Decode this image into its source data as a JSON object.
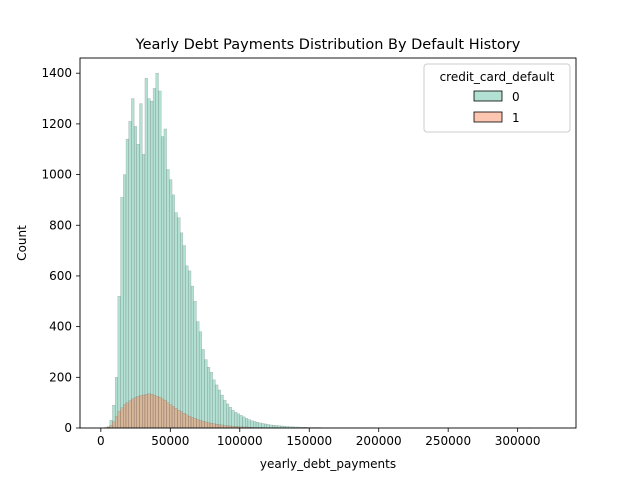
{
  "chart_data": {
    "type": "histogram",
    "title": "Yearly Debt Payments Distribution By Default History",
    "xlabel": "yearly_debt_payments",
    "ylabel": "Count",
    "xlim": [
      -15000,
      342000
    ],
    "ylim": [
      0,
      1460
    ],
    "xticks": [
      0,
      50000,
      100000,
      150000,
      200000,
      250000,
      300000
    ],
    "xtick_labels": [
      "0",
      "50000",
      "100000",
      "150000",
      "200000",
      "250000",
      "300000"
    ],
    "yticks": [
      0,
      200,
      400,
      600,
      800,
      1000,
      1200,
      1400
    ],
    "ytick_labels": [
      "0",
      "200",
      "400",
      "600",
      "800",
      "1000",
      "1200",
      "1400"
    ],
    "bin_start": 2500,
    "bin_width": 1950,
    "legend": {
      "title": "credit_card_default",
      "position": "top-right"
    },
    "series": [
      {
        "name": "0",
        "color": "#66c2a5",
        "counts": [
          2,
          5,
          30,
          90,
          200,
          520,
          910,
          1000,
          1140,
          1210,
          1300,
          1190,
          1120,
          1280,
          1080,
          1380,
          1300,
          1290,
          1340,
          1400,
          1330,
          1150,
          1180,
          1020,
          980,
          920,
          850,
          830,
          770,
          720,
          640,
          620,
          560,
          500,
          420,
          380,
          310,
          270,
          240,
          220,
          190,
          170,
          150,
          130,
          110,
          95,
          82,
          70,
          62,
          56,
          50,
          44,
          38,
          33,
          29,
          26,
          23,
          20,
          18,
          16,
          14,
          12,
          11,
          10,
          9,
          8,
          7,
          6,
          5,
          5,
          4,
          4,
          3,
          3,
          3,
          2,
          2,
          2,
          2,
          2,
          1,
          1,
          1,
          1,
          1,
          1,
          1,
          1,
          1,
          1,
          1,
          1,
          1,
          1,
          1,
          1,
          1,
          1,
          1,
          1,
          0,
          0,
          0,
          0,
          0,
          0,
          0,
          0,
          0,
          0,
          0,
          0,
          0,
          0,
          0,
          0,
          0,
          0,
          0,
          0,
          0,
          0,
          0,
          0,
          0,
          0,
          0,
          0,
          0,
          0,
          0,
          0,
          0,
          0,
          0,
          0,
          0,
          0,
          0,
          0,
          0,
          0,
          0,
          0,
          0,
          0,
          0,
          0,
          0,
          0,
          0,
          0,
          0,
          0,
          0,
          0,
          1,
          1
        ]
      },
      {
        "name": "1",
        "color": "#fc8d62",
        "counts": [
          1,
          3,
          10,
          25,
          45,
          65,
          80,
          92,
          100,
          108,
          115,
          120,
          125,
          128,
          130,
          132,
          135,
          133,
          130,
          125,
          122,
          115,
          110,
          100,
          92,
          85,
          78,
          70,
          64,
          58,
          52,
          47,
          42,
          38,
          34,
          30,
          27,
          24,
          21,
          19,
          17,
          15,
          13,
          12,
          10,
          9,
          8,
          7,
          6,
          5,
          5,
          4,
          4,
          3,
          3,
          2,
          2,
          2,
          2,
          1,
          1,
          1,
          1,
          1,
          1
        ]
      }
    ]
  }
}
